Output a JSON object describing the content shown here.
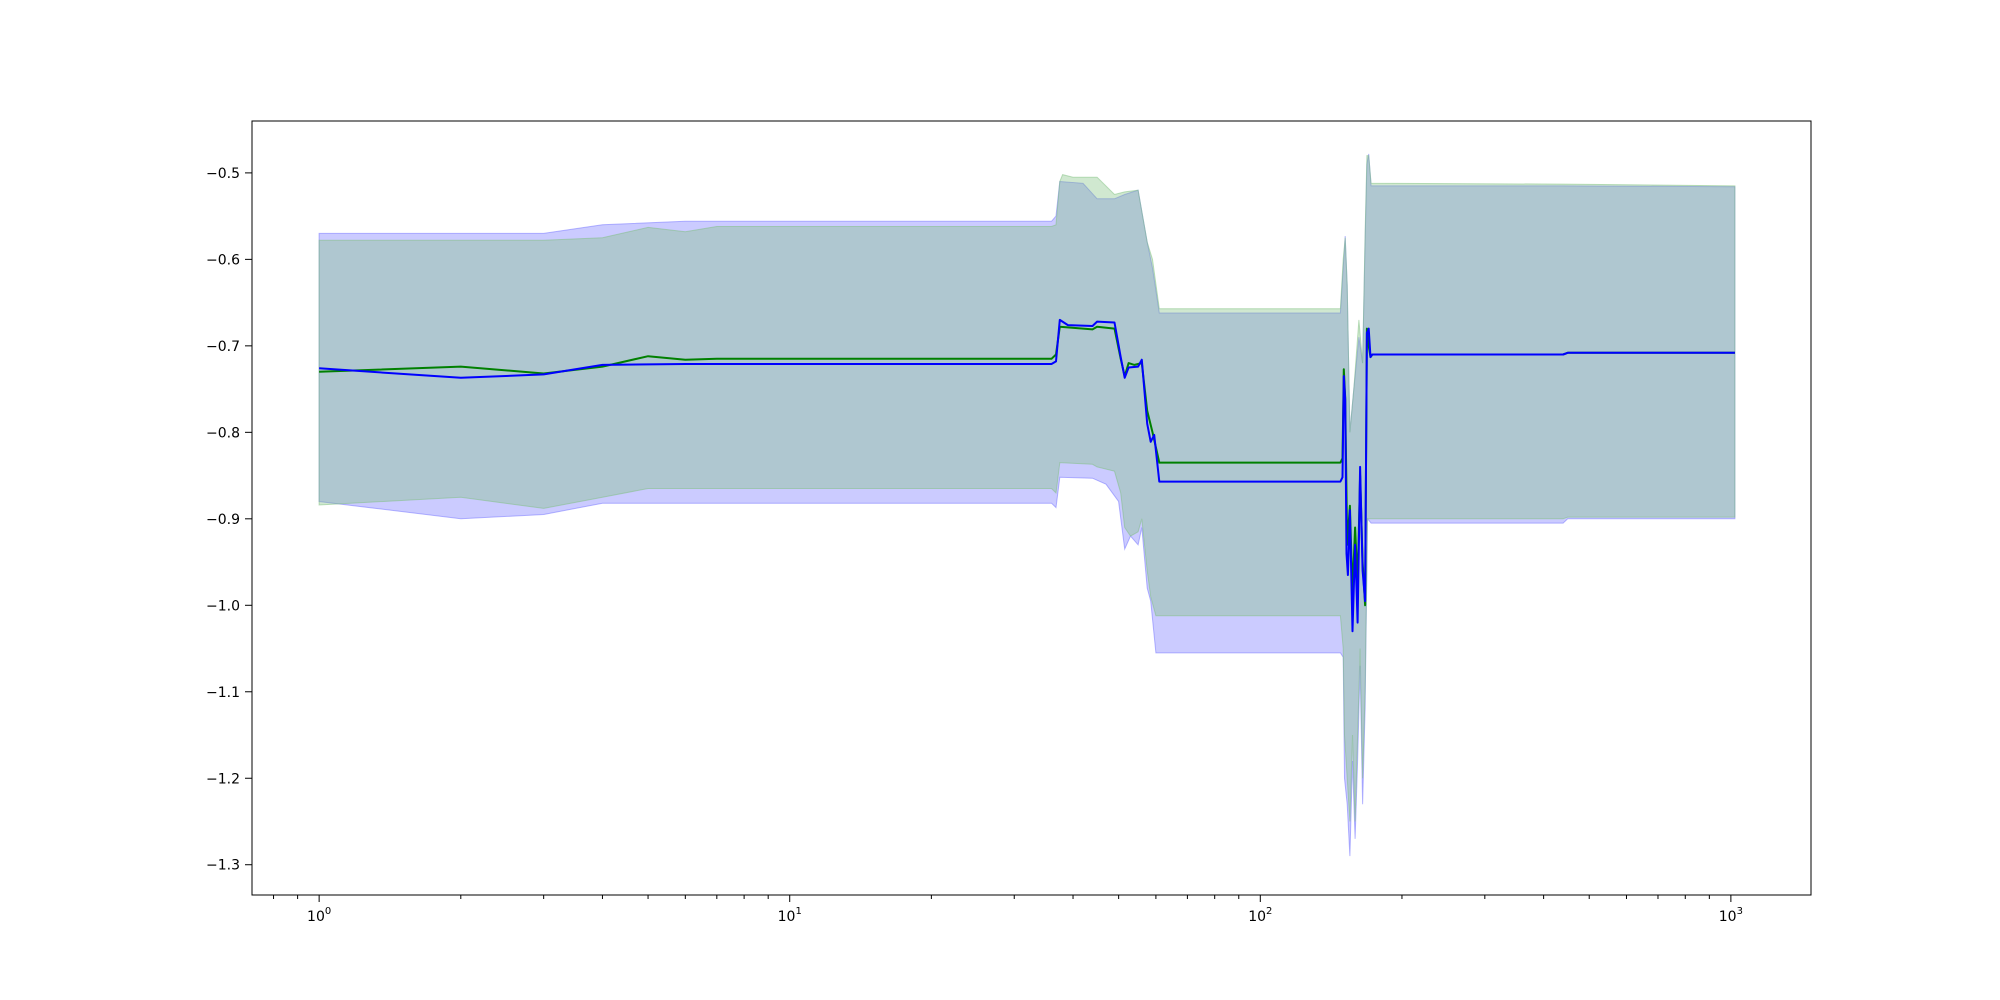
{
  "chart_data": {
    "type": "line",
    "title": "",
    "xlabel": "",
    "ylabel": "",
    "x_scale": "log",
    "xlim": [
      0.72,
      1480
    ],
    "ylim": [
      -1.335,
      -0.44
    ],
    "grid": false,
    "legend": "none",
    "x_ticks": [
      {
        "base": "10",
        "exp": "0",
        "value": 1
      },
      {
        "base": "10",
        "exp": "1",
        "value": 10
      },
      {
        "base": "10",
        "exp": "2",
        "value": 100
      },
      {
        "base": "10",
        "exp": "3",
        "value": 1000
      }
    ],
    "y_ticks": [
      {
        "label": "−0.5",
        "value": -0.5
      },
      {
        "label": "−0.6",
        "value": -0.6
      },
      {
        "label": "−0.7",
        "value": -0.7
      },
      {
        "label": "−0.8",
        "value": -0.8
      },
      {
        "label": "−0.9",
        "value": -0.9
      },
      {
        "label": "−1.0",
        "value": -1.0
      },
      {
        "label": "−1.1",
        "value": -1.1
      },
      {
        "label": "−1.2",
        "value": -1.2
      },
      {
        "label": "−1.3",
        "value": -1.3
      }
    ],
    "series": [
      {
        "color": "#0000ff",
        "band_color": "#7070ff",
        "mean": [
          [
            1,
            -0.726
          ],
          [
            2,
            -0.737
          ],
          [
            3,
            -0.733
          ],
          [
            4,
            -0.722
          ],
          [
            6,
            -0.721
          ],
          [
            36,
            -0.721
          ],
          [
            36.8,
            -0.718
          ],
          [
            37.5,
            -0.67
          ],
          [
            39,
            -0.676
          ],
          [
            44,
            -0.677
          ],
          [
            45,
            -0.672
          ],
          [
            49,
            -0.673
          ],
          [
            50.5,
            -0.713
          ],
          [
            51.5,
            -0.737
          ],
          [
            52.5,
            -0.725
          ],
          [
            55,
            -0.724
          ],
          [
            56,
            -0.716
          ],
          [
            57.5,
            -0.79
          ],
          [
            58.5,
            -0.811
          ],
          [
            59.5,
            -0.803
          ],
          [
            61,
            -0.857
          ],
          [
            148,
            -0.857
          ],
          [
            149.5,
            -0.852
          ],
          [
            150.5,
            -0.735
          ],
          [
            151.5,
            -0.762
          ],
          [
            152.5,
            -0.94
          ],
          [
            153.5,
            -0.965
          ],
          [
            155,
            -0.89
          ],
          [
            157,
            -1.03
          ],
          [
            159,
            -0.93
          ],
          [
            161,
            -1.02
          ],
          [
            163,
            -0.84
          ],
          [
            165,
            -0.96
          ],
          [
            167,
            -0.995
          ],
          [
            168.5,
            -0.685
          ],
          [
            170,
            -0.68
          ],
          [
            171.5,
            -0.713
          ],
          [
            173,
            -0.71
          ],
          [
            440,
            -0.71
          ],
          [
            450,
            -0.708
          ],
          [
            1020,
            -0.708
          ]
        ],
        "upper": [
          [
            1,
            -0.57
          ],
          [
            3,
            -0.57
          ],
          [
            4,
            -0.56
          ],
          [
            6,
            -0.556
          ],
          [
            36,
            -0.556
          ],
          [
            36.8,
            -0.55
          ],
          [
            37.5,
            -0.51
          ],
          [
            42,
            -0.512
          ],
          [
            45,
            -0.53
          ],
          [
            49,
            -0.53
          ],
          [
            51.5,
            -0.525
          ],
          [
            55,
            -0.52
          ],
          [
            57.5,
            -0.58
          ],
          [
            59,
            -0.61
          ],
          [
            61,
            -0.662
          ],
          [
            148,
            -0.662
          ],
          [
            150,
            -0.61
          ],
          [
            151.5,
            -0.573
          ],
          [
            153,
            -0.63
          ],
          [
            155,
            -0.8
          ],
          [
            158,
            -0.75
          ],
          [
            162,
            -0.69
          ],
          [
            165,
            -0.72
          ],
          [
            167,
            -0.58
          ],
          [
            168.5,
            -0.49
          ],
          [
            170,
            -0.478
          ],
          [
            172,
            -0.515
          ],
          [
            440,
            -0.515
          ],
          [
            1020,
            -0.516
          ]
        ],
        "lower": [
          [
            1,
            -0.88
          ],
          [
            2,
            -0.9
          ],
          [
            3,
            -0.895
          ],
          [
            4,
            -0.882
          ],
          [
            36,
            -0.882
          ],
          [
            36.8,
            -0.887
          ],
          [
            37.5,
            -0.852
          ],
          [
            44,
            -0.853
          ],
          [
            47,
            -0.86
          ],
          [
            50,
            -0.88
          ],
          [
            51.5,
            -0.935
          ],
          [
            53,
            -0.92
          ],
          [
            55,
            -0.93
          ],
          [
            56,
            -0.91
          ],
          [
            57.5,
            -0.98
          ],
          [
            58.5,
            -0.995
          ],
          [
            60,
            -1.055
          ],
          [
            148,
            -1.055
          ],
          [
            150,
            -1.06
          ],
          [
            151,
            -1.2
          ],
          [
            153,
            -1.23
          ],
          [
            155,
            -1.29
          ],
          [
            157,
            -1.18
          ],
          [
            159,
            -1.27
          ],
          [
            161,
            -1.18
          ],
          [
            163,
            -1.07
          ],
          [
            165,
            -1.23
          ],
          [
            167,
            -1.12
          ],
          [
            169,
            -0.9
          ],
          [
            172,
            -0.905
          ],
          [
            440,
            -0.905
          ],
          [
            450,
            -0.9
          ],
          [
            1020,
            -0.9
          ]
        ]
      },
      {
        "color": "#008000",
        "band_color": "#7ebf7e",
        "mean": [
          [
            1,
            -0.73
          ],
          [
            2,
            -0.724
          ],
          [
            3,
            -0.732
          ],
          [
            4,
            -0.724
          ],
          [
            5,
            -0.712
          ],
          [
            6,
            -0.716
          ],
          [
            7,
            -0.715
          ],
          [
            36,
            -0.715
          ],
          [
            36.8,
            -0.71
          ],
          [
            37.5,
            -0.678
          ],
          [
            44,
            -0.681
          ],
          [
            45,
            -0.678
          ],
          [
            49,
            -0.68
          ],
          [
            50.5,
            -0.715
          ],
          [
            51.5,
            -0.735
          ],
          [
            52.5,
            -0.72
          ],
          [
            54,
            -0.722
          ],
          [
            56,
            -0.72
          ],
          [
            57.5,
            -0.775
          ],
          [
            59,
            -0.8
          ],
          [
            61,
            -0.835
          ],
          [
            148,
            -0.835
          ],
          [
            149.5,
            -0.83
          ],
          [
            150.5,
            -0.727
          ],
          [
            151.5,
            -0.76
          ],
          [
            153,
            -0.93
          ],
          [
            155,
            -0.885
          ],
          [
            157,
            -0.985
          ],
          [
            159,
            -0.91
          ],
          [
            161,
            -0.975
          ],
          [
            163,
            -0.85
          ],
          [
            165,
            -0.95
          ],
          [
            167,
            -1.0
          ],
          [
            168.5,
            -0.68
          ],
          [
            170,
            -0.7
          ],
          [
            171.5,
            -0.713
          ],
          [
            173,
            -0.71
          ],
          [
            440,
            -0.71
          ],
          [
            450,
            -0.708
          ],
          [
            1020,
            -0.708
          ]
        ],
        "upper": [
          [
            1,
            -0.578
          ],
          [
            3,
            -0.578
          ],
          [
            4,
            -0.575
          ],
          [
            5,
            -0.563
          ],
          [
            6,
            -0.568
          ],
          [
            7,
            -0.562
          ],
          [
            36,
            -0.562
          ],
          [
            36.8,
            -0.56
          ],
          [
            37.5,
            -0.51
          ],
          [
            38,
            -0.502
          ],
          [
            40,
            -0.505
          ],
          [
            45,
            -0.505
          ],
          [
            49,
            -0.525
          ],
          [
            51.5,
            -0.522
          ],
          [
            55,
            -0.52
          ],
          [
            57.5,
            -0.58
          ],
          [
            59,
            -0.6
          ],
          [
            61,
            -0.657
          ],
          [
            148,
            -0.657
          ],
          [
            150,
            -0.6
          ],
          [
            151.5,
            -0.575
          ],
          [
            153,
            -0.63
          ],
          [
            155,
            -0.8
          ],
          [
            158,
            -0.75
          ],
          [
            162,
            -0.67
          ],
          [
            165,
            -0.72
          ],
          [
            167,
            -0.57
          ],
          [
            168.5,
            -0.48
          ],
          [
            170,
            -0.48
          ],
          [
            172,
            -0.512
          ],
          [
            440,
            -0.513
          ],
          [
            1020,
            -0.515
          ]
        ],
        "lower": [
          [
            1,
            -0.884
          ],
          [
            2,
            -0.875
          ],
          [
            3,
            -0.888
          ],
          [
            4,
            -0.875
          ],
          [
            5,
            -0.865
          ],
          [
            7,
            -0.865
          ],
          [
            36,
            -0.865
          ],
          [
            36.8,
            -0.87
          ],
          [
            37.5,
            -0.835
          ],
          [
            44,
            -0.837
          ],
          [
            45,
            -0.84
          ],
          [
            49,
            -0.845
          ],
          [
            50.5,
            -0.87
          ],
          [
            51.5,
            -0.91
          ],
          [
            53,
            -0.92
          ],
          [
            55,
            -0.915
          ],
          [
            56,
            -0.9
          ],
          [
            57.5,
            -0.96
          ],
          [
            58.5,
            -0.99
          ],
          [
            60,
            -1.012
          ],
          [
            148,
            -1.012
          ],
          [
            150,
            -1.05
          ],
          [
            151,
            -1.15
          ],
          [
            153,
            -1.2
          ],
          [
            155,
            -1.25
          ],
          [
            157,
            -1.15
          ],
          [
            159,
            -1.25
          ],
          [
            161,
            -1.15
          ],
          [
            163,
            -1.05
          ],
          [
            165,
            -1.2
          ],
          [
            167,
            -1.1
          ],
          [
            169,
            -0.9
          ],
          [
            172,
            -0.9
          ],
          [
            440,
            -0.9
          ],
          [
            450,
            -0.898
          ],
          [
            1020,
            -0.898
          ]
        ]
      }
    ]
  }
}
